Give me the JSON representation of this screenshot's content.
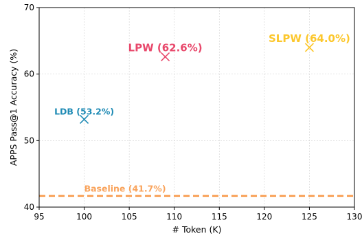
{
  "chart_data": {
    "type": "scatter",
    "title": "",
    "xlabel": "# Token (K)",
    "ylabel": "APPS Pass@1 Accuracy (%)",
    "xlim": [
      95,
      130
    ],
    "ylim": [
      40,
      70
    ],
    "xticks": [
      95,
      100,
      105,
      110,
      115,
      120,
      125,
      130
    ],
    "yticks": [
      40,
      50,
      60,
      70
    ],
    "grid": true,
    "marker": "x",
    "points": [
      {
        "label": "LDB (53.2%)",
        "x": 100,
        "y": 53.2,
        "color": "#1f8bb5"
      },
      {
        "label": "LPW (62.6%)",
        "x": 109,
        "y": 62.6,
        "color": "#e8486b"
      },
      {
        "label": "SLPW (64.0%)",
        "x": 125,
        "y": 64.0,
        "color": "#fcc72c"
      }
    ],
    "baseline": {
      "label": "Baseline (41.7%)",
      "y": 41.7,
      "color": "#f9a35b",
      "style": "dashed"
    }
  }
}
